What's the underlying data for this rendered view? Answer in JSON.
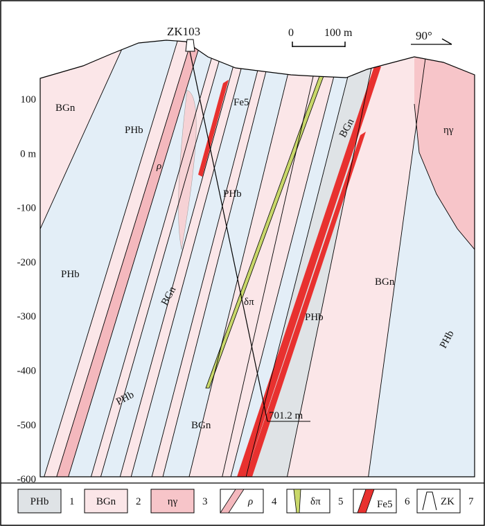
{
  "colors": {
    "PHb": "#e3eef7",
    "BGn": "#fbe6e8",
    "eta_gamma": "#f7c5c9",
    "rho": "#f4b8bd",
    "delta_pi": "#c9d86a",
    "Fe5": "#e8312f",
    "shade": "#dfe3e6",
    "line": "#000000"
  },
  "drillhole": {
    "name": "ZK103",
    "depth_label": "701.2 m"
  },
  "scale_bar": {
    "start": "0",
    "end": "100 m"
  },
  "orientation": {
    "label": "90°"
  },
  "depth_axis": {
    "ticks": [
      "100",
      "0 m",
      "-100",
      "-200",
      "-300",
      "-400",
      "-500",
      "-600"
    ]
  },
  "units": {
    "bgn_upper_left": "BGn",
    "phb_upper_left": "PHb",
    "rho_label": "ρ",
    "fe5_label": "Fe5",
    "phb_center": "PHb",
    "bgn_upper_right": "BGn",
    "eta_gamma_label": "ηγ",
    "phb_left": "PHb",
    "bgn_mid_left": "BGn",
    "delta_pi_label": "δπ",
    "phb_center_lower": "PHb",
    "bgn_right": "BGn",
    "phb_right": "PHb",
    "phb_lower_left": "PHb",
    "bgn_lower": "BGn"
  },
  "legend": [
    {
      "num": "1",
      "symbol": "PHb",
      "kind": "PHb"
    },
    {
      "num": "2",
      "symbol": "BGn",
      "kind": "BGn"
    },
    {
      "num": "3",
      "symbol": "ηγ",
      "kind": "eta"
    },
    {
      "num": "4",
      "symbol": "ρ",
      "kind": "rho"
    },
    {
      "num": "5",
      "symbol": "δπ",
      "kind": "dpi"
    },
    {
      "num": "6",
      "symbol": "Fe5",
      "kind": "fe"
    },
    {
      "num": "7",
      "symbol": "ZK",
      "kind": "zk"
    }
  ]
}
